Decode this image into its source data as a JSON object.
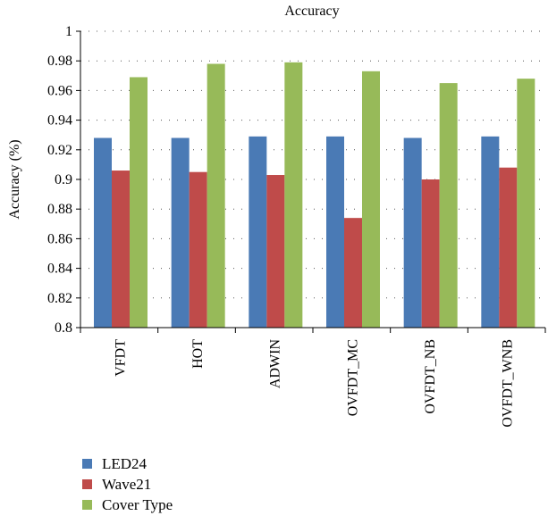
{
  "chart_data": {
    "type": "bar",
    "title": "Accuracy",
    "xlabel": "",
    "ylabel": "Accuracy (%)",
    "ylim": [
      0.8,
      1
    ],
    "yticks": [
      "0.8",
      "0.82",
      "0.84",
      "0.86",
      "0.88",
      "0.9",
      "0.92",
      "0.94",
      "0.96",
      "0.98",
      "1"
    ],
    "grid": "horizontal-dotted",
    "legend_position": "bottom-left",
    "categories": [
      "VFDT",
      "HOT",
      "ADWIN",
      "OVFDT_MC",
      "OVFDT_NB",
      "OVFDT_WNB"
    ],
    "series": [
      {
        "name": "LED24",
        "color": "#4a7ab5",
        "values": [
          0.928,
          0.928,
          0.929,
          0.929,
          0.928,
          0.929
        ]
      },
      {
        "name": "Wave21",
        "color": "#bf4b4a",
        "values": [
          0.906,
          0.905,
          0.903,
          0.874,
          0.9,
          0.908
        ]
      },
      {
        "name": "Cover Type",
        "color": "#97ba59",
        "values": [
          0.969,
          0.978,
          0.979,
          0.973,
          0.965,
          0.968
        ]
      }
    ]
  }
}
